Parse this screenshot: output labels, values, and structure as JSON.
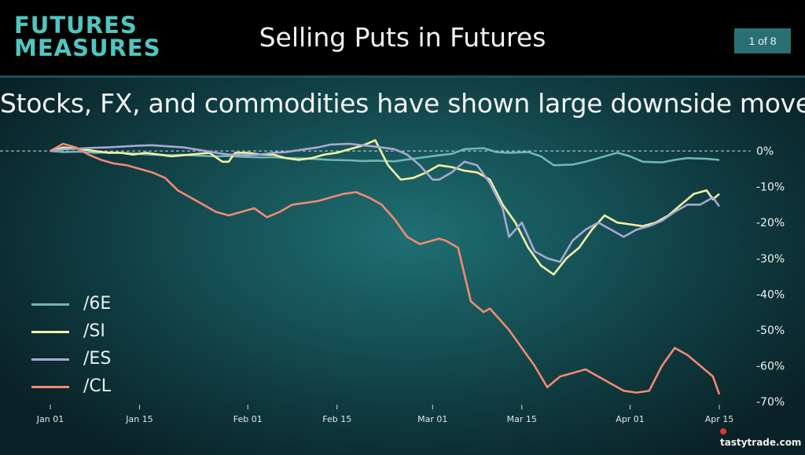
{
  "header": {
    "logo_line1": "FUTURES",
    "logo_line2": "MEASURES",
    "title": "Selling Puts in Futures",
    "page_indicator": "1 of 8"
  },
  "subtitle": "Stocks, FX, and commodities have shown large downside moves.",
  "brand": "tastytrade.com",
  "colors": {
    "header_bg": "#000000",
    "logo": "#4fc6bf",
    "badge_bg": "#2a6f73",
    "/6E": "#6fb6b4",
    "/SI": "#f3f1a3",
    "/ES": "#a9a8d3",
    "/CL": "#f28a73"
  },
  "chart_data": {
    "type": "line",
    "x_start": "Jan 01",
    "x_end": "Apr 15",
    "xticks": [
      {
        "day": 1,
        "label": "Jan 01"
      },
      {
        "day": 15,
        "label": "Jan 15"
      },
      {
        "day": 32,
        "label": "Feb 01"
      },
      {
        "day": 46,
        "label": "Feb 15"
      },
      {
        "day": 61,
        "label": "Mar 01"
      },
      {
        "day": 75,
        "label": "Mar 15"
      },
      {
        "day": 92,
        "label": "Apr 01"
      },
      {
        "day": 106,
        "label": "Apr 15"
      }
    ],
    "y_ticks": [
      0,
      -10,
      -20,
      -30,
      -40,
      -50,
      -60,
      -70
    ],
    "y_tick_labels": [
      "0%",
      "-10%",
      "-20%",
      "-30%",
      "-40%",
      "-50%",
      "-60%",
      "-70%"
    ],
    "ylim": [
      -70,
      2
    ],
    "zero_line": "dashed",
    "legend_position": "left",
    "series": [
      {
        "name": "/6E",
        "x": [
          1,
          3,
          6,
          8,
          10,
          13,
          15,
          17,
          20,
          22,
          24,
          27,
          29,
          31,
          34,
          36,
          38,
          41,
          43,
          45,
          48,
          50,
          52,
          55,
          57,
          59,
          62,
          64,
          66,
          69,
          71,
          73,
          76,
          78,
          80,
          83,
          85,
          87,
          90,
          92,
          94,
          97,
          99,
          101,
          104,
          106
        ],
        "values": [
          0,
          -0.3,
          -0.2,
          -0.5,
          -0.4,
          -0.6,
          -0.8,
          -1.0,
          -1.2,
          -1.1,
          -1.3,
          -1.5,
          -1.4,
          -1.6,
          -1.8,
          -1.7,
          -2.0,
          -2.1,
          -2.3,
          -2.5,
          -2.6,
          -2.8,
          -2.7,
          -2.9,
          -2.4,
          -1.9,
          -1.2,
          -0.8,
          0.5,
          0.8,
          -0.3,
          -0.5,
          -0.3,
          -1.5,
          -4.0,
          -3.8,
          -3.0,
          -2.0,
          -0.5,
          -1.5,
          -3.0,
          -3.2,
          -2.5,
          -2.0,
          -2.2,
          -2.5
        ]
      },
      {
        "name": "/SI",
        "x": [
          1,
          3,
          6,
          8,
          10,
          12,
          14,
          16,
          18,
          20,
          23,
          26,
          28,
          29,
          30,
          32,
          34,
          36,
          38,
          40,
          42,
          44,
          46,
          48,
          50,
          52,
          54,
          56,
          58,
          60,
          62,
          64,
          65,
          66,
          68,
          70,
          72,
          74,
          76,
          78,
          80,
          82,
          84,
          86,
          88,
          90,
          92,
          94,
          96,
          98,
          100,
          102,
          104,
          105,
          106
        ],
        "values": [
          0,
          1.0,
          0.5,
          0,
          -0.5,
          -0.5,
          -1.0,
          -0.5,
          -1.0,
          -1.5,
          -1.0,
          -0.5,
          -3.0,
          -3.0,
          -0.5,
          -0.5,
          -1.0,
          -1.0,
          -2.0,
          -2.5,
          -2.0,
          -1.0,
          -0.5,
          0.5,
          1.5,
          3.0,
          -4.0,
          -8.0,
          -7.5,
          -6.0,
          -4.0,
          -4.5,
          -5.0,
          -5.5,
          -6.0,
          -8.0,
          -15.0,
          -20.0,
          -27.0,
          -32.0,
          -34.5,
          -30.0,
          -27.0,
          -22.0,
          -18.0,
          -20.0,
          -20.5,
          -21.0,
          -20.0,
          -18.0,
          -15.0,
          -12.0,
          -11.0,
          -13.5,
          -12.0
        ]
      },
      {
        "name": "/ES",
        "x": [
          1,
          3,
          6,
          8,
          10,
          13,
          15,
          17,
          20,
          22,
          24,
          27,
          29,
          31,
          34,
          36,
          38,
          41,
          43,
          45,
          48,
          50,
          52,
          55,
          57,
          59,
          61,
          62,
          64,
          66,
          68,
          70,
          72,
          73,
          75,
          77,
          79,
          81,
          83,
          85,
          87,
          89,
          91,
          93,
          95,
          97,
          99,
          101,
          103,
          104,
          105,
          106
        ],
        "values": [
          0,
          0.5,
          0.7,
          0.9,
          1.0,
          1.3,
          1.5,
          1.6,
          1.2,
          1.0,
          0.4,
          -0.5,
          -1.0,
          -1.2,
          -1.0,
          -0.5,
          -0.3,
          0.5,
          1.0,
          1.8,
          2.0,
          1.6,
          1.2,
          0.5,
          -1.0,
          -4.0,
          -8.0,
          -8.0,
          -6.0,
          -3.0,
          -4.0,
          -9.0,
          -16.0,
          -24.0,
          -20.0,
          -28.0,
          -30.0,
          -31.0,
          -25.0,
          -22.0,
          -20.0,
          -22.0,
          -24.0,
          -22.0,
          -21.0,
          -19.5,
          -17.0,
          -15.0,
          -15.0,
          -14.0,
          -13.0,
          -15.5
        ]
      },
      {
        "name": "/CL",
        "x": [
          1,
          3,
          5,
          7,
          9,
          11,
          13,
          15,
          17,
          19,
          21,
          23,
          25,
          27,
          29,
          31,
          33,
          35,
          37,
          39,
          41,
          43,
          45,
          47,
          49,
          51,
          53,
          55,
          57,
          59,
          61,
          62,
          63,
          65,
          67,
          69,
          70,
          71,
          73,
          75,
          77,
          79,
          81,
          83,
          85,
          87,
          89,
          91,
          93,
          95,
          97,
          99,
          101,
          103,
          105,
          106
        ],
        "values": [
          0,
          2.0,
          1.0,
          -1.0,
          -2.5,
          -3.5,
          -4.0,
          -5.0,
          -6.0,
          -7.5,
          -11.0,
          -13.0,
          -15.0,
          -17.0,
          -18.0,
          -17.0,
          -16.0,
          -18.5,
          -17.0,
          -15.0,
          -14.5,
          -14.0,
          -13.0,
          -12.0,
          -11.5,
          -13.0,
          -15.0,
          -19.0,
          -24.0,
          -26.0,
          -25.0,
          -24.5,
          -25.0,
          -27.0,
          -42.0,
          -45.0,
          -44.0,
          -46.0,
          -50.0,
          -55.0,
          -60.0,
          -66.0,
          -63.0,
          -62.0,
          -61.0,
          -63.0,
          -65.0,
          -67.0,
          -67.5,
          -67.0,
          -60.0,
          -55.0,
          -57.0,
          -60.0,
          -63.0,
          -68.0
        ]
      }
    ]
  }
}
